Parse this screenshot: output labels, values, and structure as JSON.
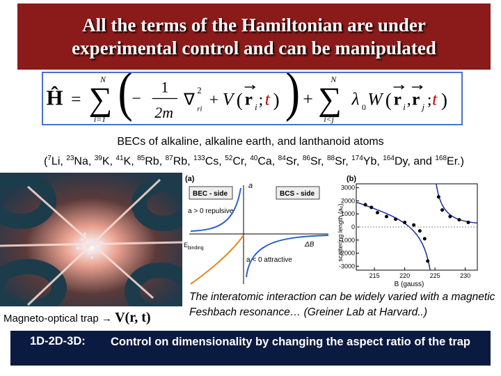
{
  "title": "All the terms of the Hamiltonian are under experimental control and can be manipulated",
  "hamiltonian": [
    "Ĥ",
    "=",
    "∑",
    "N",
    "i=1",
    "(",
    "−",
    "1",
    "2m",
    "∇",
    "2",
    "ri",
    "+",
    "V",
    "(",
    "r",
    "i",
    ";",
    "t",
    ")",
    ")",
    "+",
    "∑",
    "N",
    "i<j",
    "λ",
    "0",
    "W",
    "(",
    "r",
    "i",
    ",",
    "r",
    "j",
    ";",
    "t",
    ")"
  ],
  "bec_heading": "BECs of alkaline, alkaline earth, and lanthanoid atoms",
  "isotopes_prefix": "(",
  "isotopes_separator": ", ",
  "isotopes_last_joiner": "and",
  "isotopes_suffix": ".)",
  "isotopes": [
    {
      "mass": "7",
      "symbol": "Li"
    },
    {
      "mass": "23",
      "symbol": "Na"
    },
    {
      "mass": "39",
      "symbol": "K"
    },
    {
      "mass": "41",
      "symbol": "K"
    },
    {
      "mass": "85",
      "symbol": "Rb"
    },
    {
      "mass": "87",
      "symbol": "Rb"
    },
    {
      "mass": "133",
      "symbol": "Cs"
    },
    {
      "mass": "52",
      "symbol": "Cr"
    },
    {
      "mass": "40",
      "symbol": "Ca"
    },
    {
      "mass": "84",
      "symbol": "Sr"
    },
    {
      "mass": "86",
      "symbol": "Sr"
    },
    {
      "mass": "88",
      "symbol": "Sr"
    },
    {
      "mass": "174",
      "symbol": "Yb"
    },
    {
      "mass": "164",
      "symbol": "Dy"
    },
    {
      "mass": "168",
      "symbol": "Er"
    }
  ],
  "panel_a": {
    "label": "(a)",
    "a_symbol": "a",
    "bec_side": "BEC - side",
    "bcs_side": "BCS - side",
    "repulsive": "a > 0 repulsive",
    "attractive": "a < 0 attractive",
    "e_binding": "E",
    "e_binding_sub": "binding",
    "delta_b": "ΔB"
  },
  "panel_b": {
    "label": "(b)",
    "ylabel": "scattering length (a₀)",
    "xlabel": "B (gauss)",
    "xlim": [
      212,
      232
    ],
    "ylim": [
      -3300,
      3300
    ],
    "xticks": [
      215,
      220,
      225,
      230
    ],
    "yticks": [
      3000,
      2000,
      1000,
      0,
      -1000,
      -2000,
      -3000
    ],
    "points": {
      "x": [
        213.5,
        214.5,
        215.5,
        217,
        218.5,
        220,
        221.5,
        222.5,
        223.3,
        223.8,
        225.6,
        226.2,
        227.5,
        229,
        230.5
      ],
      "y": [
        1700,
        1500,
        1100,
        800,
        600,
        350,
        150,
        -300,
        -900,
        -2600,
        2300,
        1300,
        800,
        550,
        350
      ]
    }
  },
  "mot_label": "Magneto-optical trap",
  "potential": "V(r, t)",
  "interaction_text": "The interatomic interaction can be widely varied with a magnetic Feshbach resonance… (Greiner Lab at Harvard..)",
  "dimension_label": "1D-2D-3D:",
  "dimension_text": "Control on dimensionality by changing the  aspect ratio of the trap"
}
